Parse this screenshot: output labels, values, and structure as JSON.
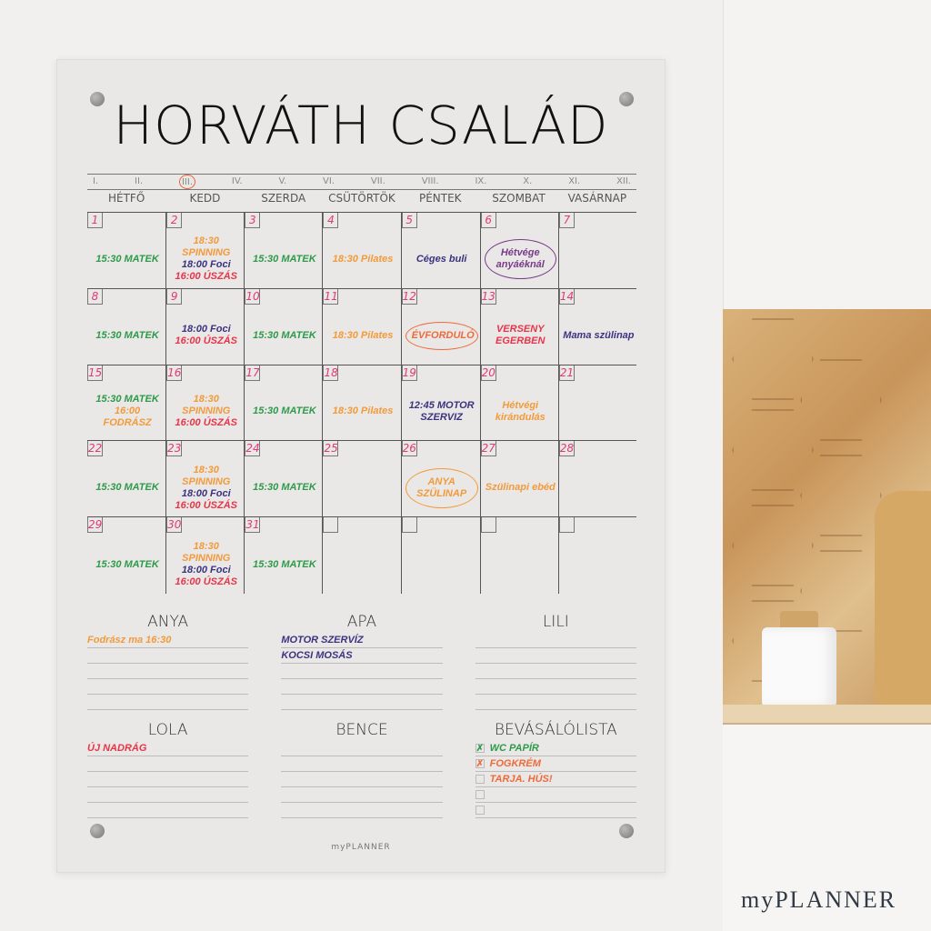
{
  "title": "HORVÁTH CSALÁD",
  "months": [
    "I.",
    "II.",
    "III.",
    "IV.",
    "V.",
    "VI.",
    "VII.",
    "VIII.",
    "IX.",
    "X.",
    "XI.",
    "XII."
  ],
  "current_month_index": 2,
  "weekdays": [
    "HÉTFŐ",
    "KEDD",
    "SZERDA",
    "CSÜTÖRTÖK",
    "PÉNTEK",
    "SZOMBAT",
    "VASÁRNAP"
  ],
  "colors": {
    "green": "#2e9a4a",
    "orange": "#f39a3a",
    "navy": "#3b3380",
    "red": "#e8344a",
    "violet": "#7a3a8a",
    "coral": "#ee6a3a",
    "day_number": "#e0397a"
  },
  "calendar": [
    {
      "day": "1",
      "events": [
        {
          "text": "15:30 MATEK",
          "color": "green"
        }
      ]
    },
    {
      "day": "2",
      "events": [
        {
          "text": "18:30 SPINNING",
          "color": "orange"
        },
        {
          "text": "18:00 Foci",
          "color": "navy"
        },
        {
          "text": "16:00 ÚSZÁS",
          "color": "red"
        }
      ]
    },
    {
      "day": "3",
      "events": [
        {
          "text": "15:30 MATEK",
          "color": "green"
        }
      ]
    },
    {
      "day": "4",
      "events": [
        {
          "text": "18:30 Pilates",
          "color": "orange"
        }
      ]
    },
    {
      "day": "5",
      "events": [
        {
          "text": "Céges buli",
          "color": "navy"
        }
      ]
    },
    {
      "day": "6",
      "events": [
        {
          "text": "Hétvége anyáéknál",
          "color": "violet",
          "circle": true
        }
      ]
    },
    {
      "day": "7",
      "events": []
    },
    {
      "day": "8",
      "events": [
        {
          "text": "15:30 MATEK",
          "color": "green"
        }
      ]
    },
    {
      "day": "9",
      "events": [
        {
          "text": "18:00 Foci",
          "color": "navy"
        },
        {
          "text": "16:00 ÚSZÁS",
          "color": "red"
        }
      ]
    },
    {
      "day": "10",
      "events": [
        {
          "text": "15:30 MATEK",
          "color": "green"
        }
      ]
    },
    {
      "day": "11",
      "events": [
        {
          "text": "18:30 Pilates",
          "color": "orange"
        }
      ]
    },
    {
      "day": "12",
      "events": [
        {
          "text": "ÉVFORDULÓ",
          "color": "coral",
          "circle": true
        }
      ]
    },
    {
      "day": "13",
      "events": [
        {
          "text": "VERSENY EGERBEN",
          "color": "red"
        }
      ]
    },
    {
      "day": "14",
      "events": [
        {
          "text": "Mama szülinap",
          "color": "navy"
        }
      ]
    },
    {
      "day": "15",
      "events": [
        {
          "text": "15:30 MATEK",
          "color": "green"
        },
        {
          "text": "16:00 FODRÁSZ",
          "color": "orange"
        }
      ]
    },
    {
      "day": "16",
      "events": [
        {
          "text": "18:30 SPINNING",
          "color": "orange"
        },
        {
          "text": "16:00 ÚSZÁS",
          "color": "red"
        }
      ]
    },
    {
      "day": "17",
      "events": [
        {
          "text": "15:30 MATEK",
          "color": "green"
        }
      ]
    },
    {
      "day": "18",
      "events": [
        {
          "text": "18:30 Pilates",
          "color": "orange"
        }
      ]
    },
    {
      "day": "19",
      "events": [
        {
          "text": "12:45 MOTOR SZERVIZ",
          "color": "navy"
        }
      ]
    },
    {
      "day": "20",
      "events": [
        {
          "text": "Hétvégi kirándulás",
          "color": "orange"
        }
      ]
    },
    {
      "day": "21",
      "events": []
    },
    {
      "day": "22",
      "events": [
        {
          "text": "15:30 MATEK",
          "color": "green"
        }
      ]
    },
    {
      "day": "23",
      "events": [
        {
          "text": "18:30 SPINNING",
          "color": "orange"
        },
        {
          "text": "18:00 Foci",
          "color": "navy"
        },
        {
          "text": "16:00 ÚSZÁS",
          "color": "red"
        }
      ]
    },
    {
      "day": "24",
      "events": [
        {
          "text": "15:30 MATEK",
          "color": "green"
        }
      ]
    },
    {
      "day": "25",
      "events": []
    },
    {
      "day": "26",
      "events": [
        {
          "text": "ANYA SZÜLINAP",
          "color": "orange",
          "circle": true
        }
      ]
    },
    {
      "day": "27",
      "events": [
        {
          "text": "Szülinapi ebéd",
          "color": "orange"
        }
      ]
    },
    {
      "day": "28",
      "events": []
    },
    {
      "day": "29",
      "events": [
        {
          "text": "15:30 MATEK",
          "color": "green"
        }
      ]
    },
    {
      "day": "30",
      "events": [
        {
          "text": "18:30 SPINNING",
          "color": "orange"
        },
        {
          "text": "18:00 Foci",
          "color": "navy"
        },
        {
          "text": "16:00 ÚSZÁS",
          "color": "red"
        }
      ]
    },
    {
      "day": "31",
      "events": [
        {
          "text": "15:30 MATEK",
          "color": "green"
        }
      ]
    },
    {
      "day": "",
      "events": []
    },
    {
      "day": "",
      "events": []
    },
    {
      "day": "",
      "events": []
    },
    {
      "day": "",
      "events": []
    }
  ],
  "lists": [
    {
      "title": "ANYA",
      "items": [
        {
          "text": "Fodrász ma 16:30",
          "color": "orange"
        }
      ]
    },
    {
      "title": "APA",
      "items": [
        {
          "text": "MOTOR SZERVÍZ",
          "color": "navy"
        },
        {
          "text": "KOCSI MOSÁS",
          "color": "navy"
        }
      ]
    },
    {
      "title": "LILI",
      "items": []
    },
    {
      "title": "LOLA",
      "items": [
        {
          "text": "ÚJ NADRÁG",
          "color": "red"
        }
      ]
    },
    {
      "title": "BENCE",
      "items": []
    },
    {
      "title": "BEVÁSÁLÓLISTA",
      "checkboxes": true,
      "items": [
        {
          "text": "WC PAPÍR",
          "color": "green",
          "checked": true
        },
        {
          "text": "FOGKRÉM",
          "color": "coral",
          "checked": true
        },
        {
          "text": "TARJA. HÚS!",
          "color": "coral",
          "checked": false
        }
      ]
    }
  ],
  "board_brand": "myPLANNER",
  "brand": "myPLANNER"
}
